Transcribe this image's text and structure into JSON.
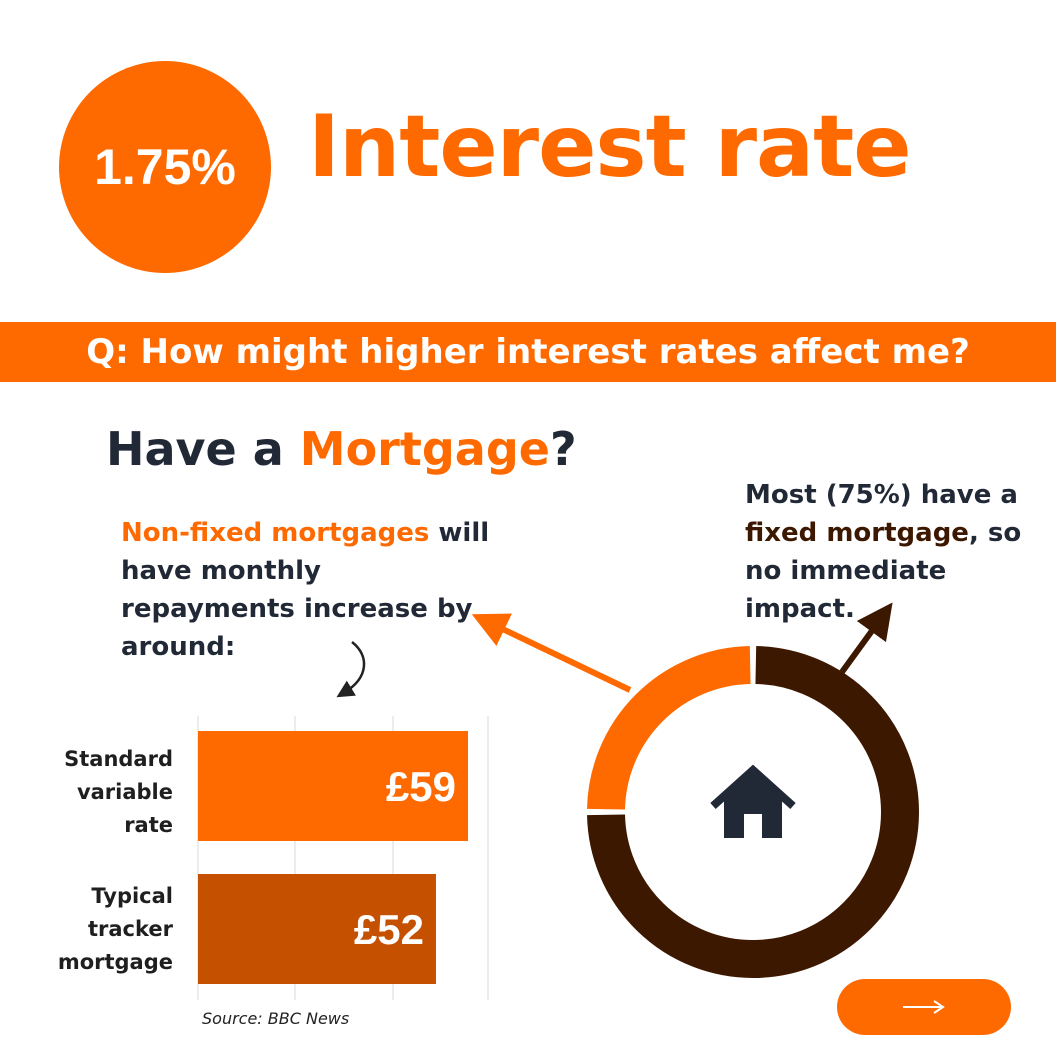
{
  "header": {
    "rate": "1.75%",
    "title": "Interest rate"
  },
  "banner": {
    "question": "Q: How might higher interest rates affect me?"
  },
  "section": {
    "title_prefix": "Have a ",
    "title_accent": "Mortgage",
    "title_suffix": "?"
  },
  "nonfixed": {
    "accent": "Non-fixed mortgages",
    "rest": " will have monthly repayments increase by around:"
  },
  "fixed": {
    "prefix": "Most (75%) have a ",
    "dark": "fixed mortgage",
    "suffix": ", so no immediate impact."
  },
  "source": "Source: BBC News",
  "icons": {
    "house": "house-icon",
    "next": "arrow-right-icon"
  },
  "colors": {
    "orange": "#ff6a00",
    "dark_orange": "#c55000",
    "brown": "#3d1800",
    "navy": "#222936"
  },
  "chart_data": [
    {
      "type": "bar",
      "orientation": "horizontal",
      "categories": [
        "Standard variable rate",
        "Typical tracker mortgage"
      ],
      "values": [
        59,
        52
      ],
      "labels": [
        "£59",
        "£52"
      ],
      "colors": [
        "#ff6a00",
        "#c55000"
      ],
      "grid": true
    },
    {
      "type": "pie",
      "style": "donut",
      "labels": [
        "Non-fixed mortgage",
        "Fixed mortgage"
      ],
      "values": [
        25,
        75
      ],
      "colors": [
        "#ff6a00",
        "#3d1800"
      ]
    }
  ]
}
